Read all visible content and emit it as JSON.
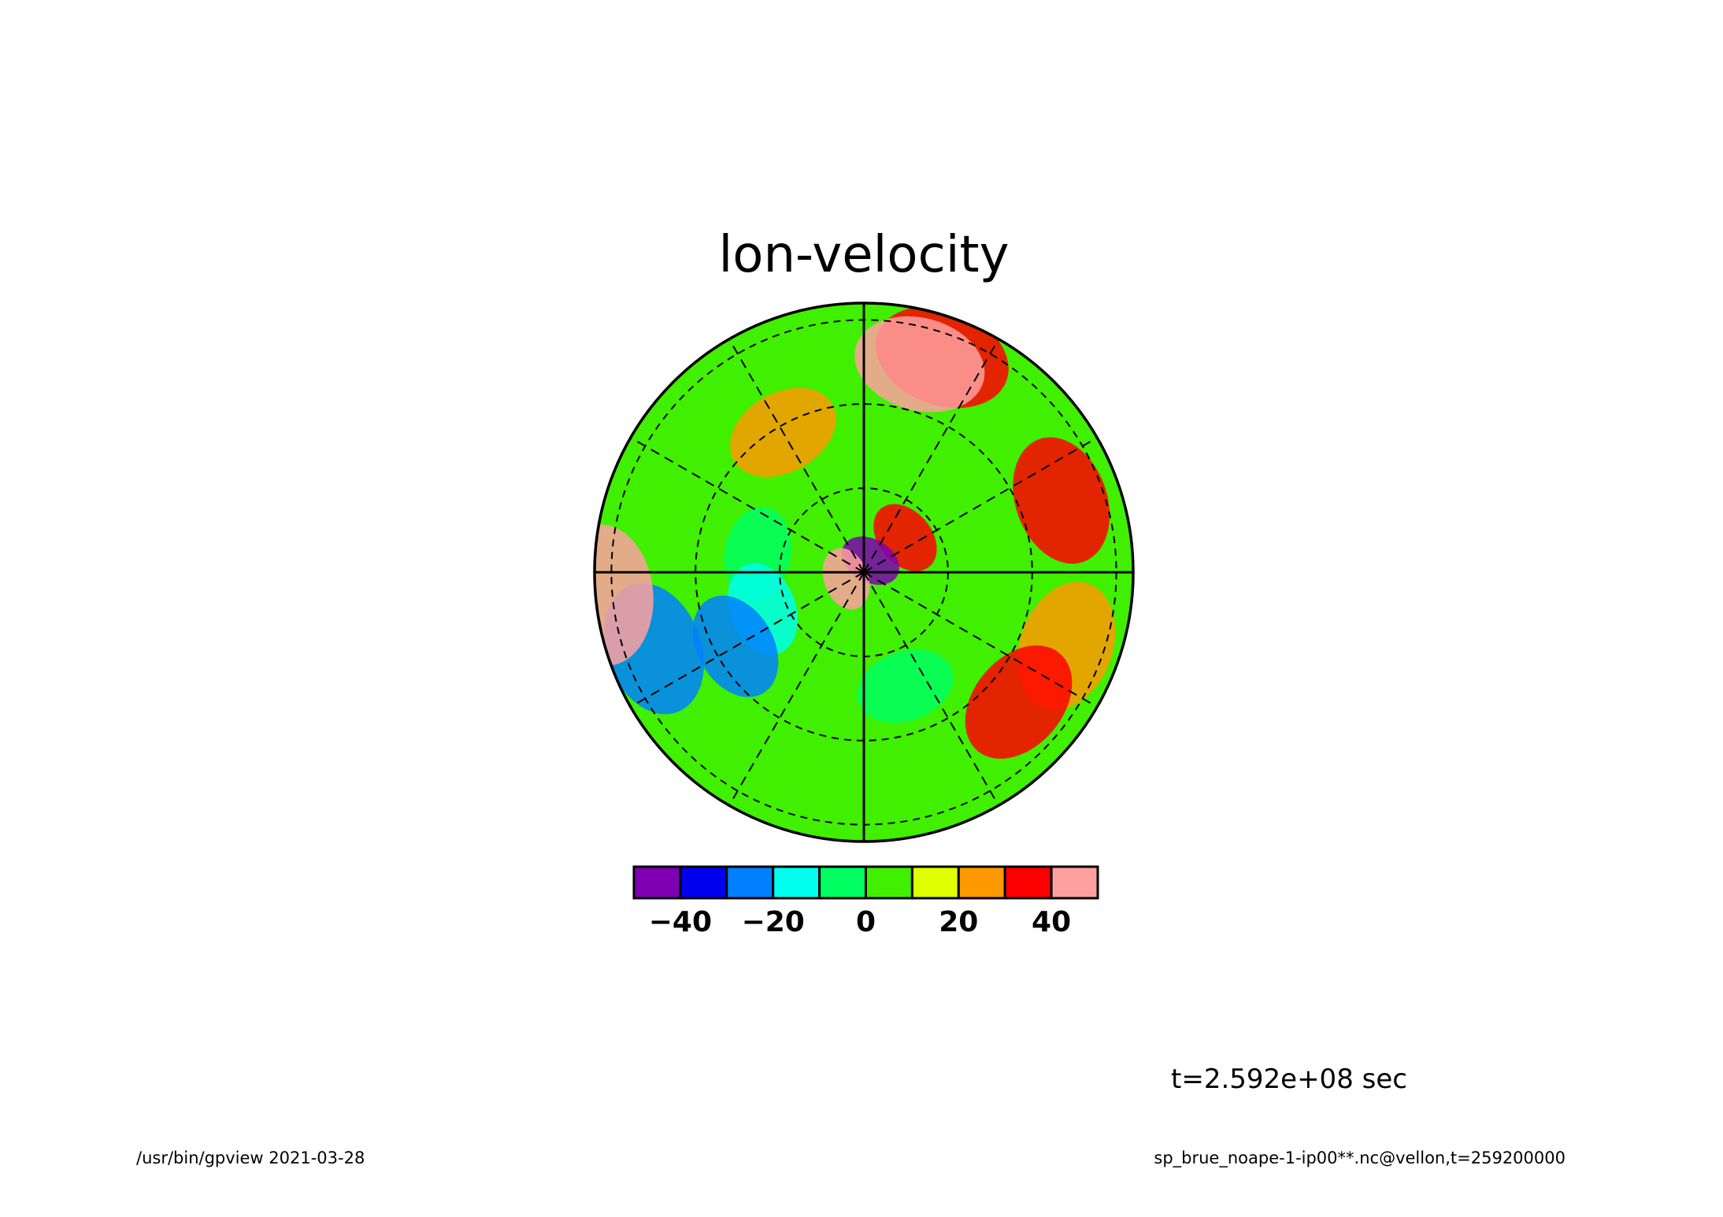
{
  "chart_data": {
    "type": "heatmap",
    "title": "lon-velocity",
    "projection": "polar",
    "colorbar": {
      "levels": [
        -50,
        -40,
        -30,
        -20,
        -10,
        0,
        10,
        20,
        30,
        40,
        50
      ],
      "colors": [
        "#7f00b2",
        "#0000ee",
        "#0080ff",
        "#00ffee",
        "#00ff60",
        "#40f000",
        "#e0ff00",
        "#ff9900",
        "#ff0000",
        "#ffa0a0"
      ],
      "tick_values": [
        -40,
        -20,
        0,
        20,
        40
      ],
      "tick_labels": [
        "-40",
        "-20",
        "0",
        "20",
        "40"
      ]
    },
    "grid": {
      "dashed_circles": 3,
      "radial_lines_deg": [
        30,
        60,
        120,
        150,
        210,
        240,
        300,
        330
      ],
      "solid_axes": true
    },
    "field_approx": [
      {
        "theta": 70,
        "r": 0.85,
        "value": 35
      },
      {
        "theta": 75,
        "r": 0.8,
        "value": 45
      },
      {
        "theta": 20,
        "r": 0.78,
        "value": 35
      },
      {
        "theta": -20,
        "r": 0.8,
        "value": 28
      },
      {
        "theta": -40,
        "r": 0.75,
        "value": 35
      },
      {
        "theta": 120,
        "r": 0.6,
        "value": 25
      },
      {
        "theta": 170,
        "r": 0.4,
        "value": -10
      },
      {
        "theta": 200,
        "r": 0.4,
        "value": -12
      },
      {
        "theta": 210,
        "r": 0.55,
        "value": -25
      },
      {
        "theta": 200,
        "r": 0.83,
        "value": -25
      },
      {
        "theta": 185,
        "r": 0.97,
        "value": 40
      },
      {
        "theta": -70,
        "r": 0.45,
        "value": -8
      },
      {
        "theta": 40,
        "r": 0.2,
        "value": 35
      },
      {
        "theta": 60,
        "r": 0.05,
        "value": -45
      },
      {
        "theta": 200,
        "r": 0.07,
        "value": 45
      }
    ]
  },
  "annotations": {
    "time": "t=2.592e+08 sec",
    "footer_left": "/usr/bin/gpview  2021-03-28",
    "footer_right": "sp_brue_noape-1-ip00**.nc@vellon,t=259200000"
  }
}
